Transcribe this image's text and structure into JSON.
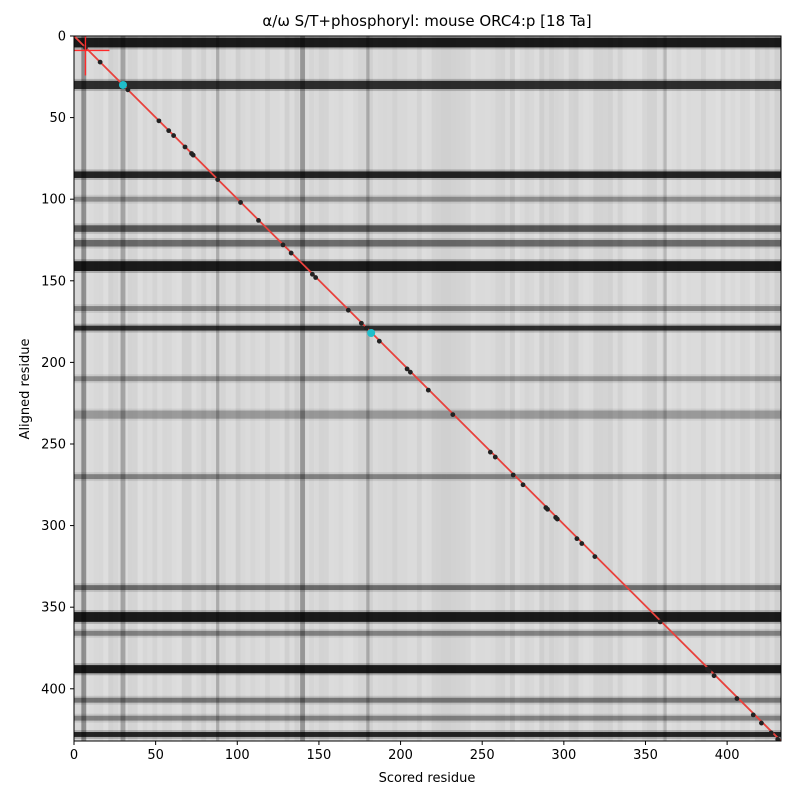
{
  "chart_data": {
    "type": "heatmap",
    "title": "α/ω S/T+phosphoryl: mouse ORC4:p [18 Ta]",
    "xlabel": "Scored residue",
    "ylabel": "Aligned residue",
    "xlim": [
      0,
      433
    ],
    "ylim": [
      432,
      0
    ],
    "x_ticks": [
      0,
      50,
      100,
      150,
      200,
      250,
      300,
      350,
      400
    ],
    "y_ticks": [
      0,
      50,
      100,
      150,
      200,
      250,
      300,
      350,
      400
    ],
    "colormap": "gray",
    "dark_rows": [
      {
        "y": 4,
        "w": 6,
        "s": 0.85
      },
      {
        "y": 30,
        "w": 5,
        "s": 0.75
      },
      {
        "y": 85,
        "w": 4,
        "s": 0.8
      },
      {
        "y": 100,
        "w": 3,
        "s": 0.3
      },
      {
        "y": 118,
        "w": 4,
        "s": 0.55
      },
      {
        "y": 127,
        "w": 4,
        "s": 0.45
      },
      {
        "y": 141,
        "w": 6,
        "s": 0.85
      },
      {
        "y": 167,
        "w": 3,
        "s": 0.35
      },
      {
        "y": 179,
        "w": 3,
        "s": 0.75
      },
      {
        "y": 210,
        "w": 3,
        "s": 0.3
      },
      {
        "y": 232,
        "w": 5,
        "s": 0.25
      },
      {
        "y": 270,
        "w": 3,
        "s": 0.35
      },
      {
        "y": 338,
        "w": 3,
        "s": 0.45
      },
      {
        "y": 356,
        "w": 6,
        "s": 0.85
      },
      {
        "y": 366,
        "w": 3,
        "s": 0.35
      },
      {
        "y": 388,
        "w": 5,
        "s": 0.85
      },
      {
        "y": 407,
        "w": 3,
        "s": 0.4
      },
      {
        "y": 418,
        "w": 3,
        "s": 0.35
      },
      {
        "y": 428,
        "w": 3,
        "s": 0.8
      }
    ],
    "dark_columns": [
      {
        "x": 6,
        "w": 3,
        "s": 0.35
      },
      {
        "x": 30,
        "w": 3,
        "s": 0.25
      },
      {
        "x": 88,
        "w": 2,
        "s": 0.2
      },
      {
        "x": 140,
        "w": 3,
        "s": 0.3
      },
      {
        "x": 180,
        "w": 2,
        "s": 0.2
      },
      {
        "x": 362,
        "w": 2,
        "s": 0.15
      }
    ],
    "diagonal_line": {
      "from": [
        0,
        0
      ],
      "to": [
        433,
        432
      ],
      "color": "#e8413c"
    },
    "points": {
      "x": [
        7,
        16,
        33,
        52,
        58,
        61,
        68,
        72,
        73,
        88,
        102,
        113,
        128,
        133,
        146,
        148,
        168,
        176,
        179,
        187,
        204,
        206,
        217,
        232,
        255,
        258,
        269,
        275,
        289,
        290,
        295,
        296,
        308,
        311,
        319,
        359,
        388,
        389,
        392,
        406,
        416,
        421,
        427,
        431
      ],
      "y": [
        7,
        16,
        33,
        52,
        58,
        61,
        68,
        72,
        73,
        88,
        102,
        113,
        128,
        133,
        146,
        148,
        168,
        176,
        179,
        187,
        204,
        206,
        217,
        232,
        255,
        258,
        269,
        275,
        289,
        290,
        295,
        296,
        308,
        311,
        319,
        359,
        388,
        389,
        392,
        406,
        416,
        421,
        427,
        431
      ],
      "color": "#222222"
    },
    "highlighted_points": {
      "x": [
        30,
        182
      ],
      "y": [
        30,
        182
      ],
      "color": "#1fbecb"
    },
    "crosshair": {
      "x": 7,
      "y": 7,
      "color": "#ff2a2a"
    }
  }
}
